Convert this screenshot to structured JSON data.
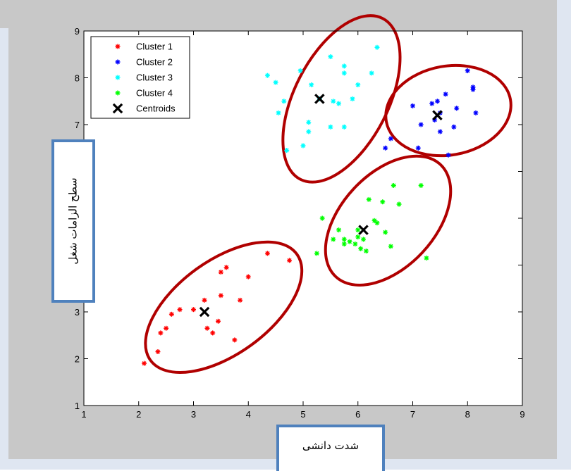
{
  "colors": {
    "figure_bg": "#c8c8c8",
    "axes_bg": "#ffffff",
    "ellipse": "#b00000",
    "label_border": "#4f81bd",
    "side_strip": "#dfe6f1"
  },
  "chart_data": {
    "type": "scatter",
    "xlim": [
      1,
      9
    ],
    "ylim": [
      1,
      9
    ],
    "xticks": [
      1,
      2,
      3,
      4,
      5,
      6,
      7,
      8,
      9
    ],
    "yticks": [
      1,
      2,
      3,
      4,
      5,
      6,
      7,
      8,
      9
    ],
    "xtick_labels": [
      "1",
      "2",
      "3",
      "4",
      "5",
      "6",
      "7",
      "8",
      "9"
    ],
    "ytick_labels": [
      "1",
      "2",
      "3",
      "",
      "",
      "",
      "7",
      "8",
      "9"
    ],
    "xlabel": "شدت دانشی",
    "ylabel": "سطح الزامات شغل",
    "legend_position": "top-left",
    "grid": false,
    "series": [
      {
        "name": "Cluster 1",
        "color": "#ff0000",
        "marker": "asterisk",
        "points": [
          [
            2.1,
            1.9
          ],
          [
            2.35,
            2.15
          ],
          [
            2.4,
            2.55
          ],
          [
            2.5,
            2.65
          ],
          [
            2.6,
            2.95
          ],
          [
            2.75,
            3.05
          ],
          [
            3.0,
            3.05
          ],
          [
            3.2,
            3.25
          ],
          [
            3.25,
            2.65
          ],
          [
            3.35,
            2.55
          ],
          [
            3.45,
            2.8
          ],
          [
            3.5,
            3.35
          ],
          [
            3.5,
            3.85
          ],
          [
            3.6,
            3.95
          ],
          [
            3.75,
            2.4
          ],
          [
            3.85,
            3.25
          ],
          [
            4.0,
            3.75
          ],
          [
            4.35,
            4.25
          ],
          [
            4.75,
            4.1
          ]
        ]
      },
      {
        "name": "Cluster 2",
        "color": "#0000ff",
        "marker": "asterisk",
        "points": [
          [
            6.5,
            6.5
          ],
          [
            6.6,
            6.7
          ],
          [
            7.0,
            7.4
          ],
          [
            7.1,
            6.5
          ],
          [
            7.15,
            7.0
          ],
          [
            7.35,
            7.45
          ],
          [
            7.4,
            7.1
          ],
          [
            7.45,
            7.5
          ],
          [
            7.5,
            6.85
          ],
          [
            7.5,
            7.25
          ],
          [
            7.6,
            7.65
          ],
          [
            7.65,
            6.35
          ],
          [
            7.75,
            6.95
          ],
          [
            7.8,
            7.35
          ],
          [
            8.0,
            8.15
          ],
          [
            8.1,
            7.8
          ],
          [
            8.15,
            7.25
          ],
          [
            8.1,
            7.75
          ]
        ]
      },
      {
        "name": "Cluster 3",
        "color": "#00ffff",
        "marker": "asterisk",
        "points": [
          [
            4.35,
            8.05
          ],
          [
            4.5,
            7.9
          ],
          [
            4.55,
            7.25
          ],
          [
            4.65,
            7.5
          ],
          [
            4.7,
            6.45
          ],
          [
            4.95,
            8.15
          ],
          [
            5.0,
            6.55
          ],
          [
            5.1,
            7.05
          ],
          [
            5.1,
            6.85
          ],
          [
            5.15,
            7.85
          ],
          [
            5.3,
            7.55
          ],
          [
            5.5,
            8.45
          ],
          [
            5.5,
            6.95
          ],
          [
            5.55,
            7.5
          ],
          [
            5.65,
            7.45
          ],
          [
            5.75,
            8.25
          ],
          [
            5.75,
            8.1
          ],
          [
            5.75,
            6.95
          ],
          [
            5.9,
            7.55
          ],
          [
            6.0,
            7.85
          ],
          [
            6.25,
            8.1
          ],
          [
            6.35,
            8.65
          ]
        ]
      },
      {
        "name": "Cluster 4",
        "color": "#00ff00",
        "marker": "asterisk",
        "points": [
          [
            5.25,
            4.25
          ],
          [
            5.35,
            5.0
          ],
          [
            5.55,
            4.55
          ],
          [
            5.65,
            4.75
          ],
          [
            5.75,
            4.55
          ],
          [
            5.75,
            4.45
          ],
          [
            5.85,
            4.5
          ],
          [
            5.95,
            4.45
          ],
          [
            6.0,
            4.6
          ],
          [
            6.0,
            4.75
          ],
          [
            6.05,
            4.35
          ],
          [
            6.1,
            4.55
          ],
          [
            6.15,
            4.3
          ],
          [
            6.2,
            5.4
          ],
          [
            6.3,
            4.95
          ],
          [
            6.35,
            4.9
          ],
          [
            6.45,
            5.35
          ],
          [
            6.5,
            4.7
          ],
          [
            6.6,
            4.4
          ],
          [
            6.65,
            5.7
          ],
          [
            6.75,
            5.3
          ],
          [
            7.15,
            5.7
          ],
          [
            7.25,
            4.15
          ]
        ]
      },
      {
        "name": "Centroids",
        "color": "#000000",
        "marker": "x-bold",
        "points": [
          [
            3.2,
            3.0
          ],
          [
            6.1,
            4.75
          ],
          [
            5.3,
            7.55
          ],
          [
            7.45,
            7.2
          ]
        ]
      }
    ],
    "annotations": [
      {
        "type": "ellipse",
        "cx": 3.55,
        "cy": 3.1,
        "rx": 1.65,
        "ry": 1.0,
        "angle_deg": 36,
        "color": "#b00000"
      },
      {
        "type": "ellipse",
        "cx": 6.55,
        "cy": 4.95,
        "rx": 1.4,
        "ry": 1.0,
        "angle_deg": 47,
        "color": "#b00000"
      },
      {
        "type": "ellipse",
        "cx": 5.7,
        "cy": 7.55,
        "rx": 1.65,
        "ry": 1.0,
        "angle_deg": 63,
        "color": "#b00000"
      },
      {
        "type": "ellipse",
        "cx": 7.65,
        "cy": 7.3,
        "rx": 1.15,
        "ry": 0.95,
        "angle_deg": 10,
        "color": "#b00000"
      }
    ]
  }
}
